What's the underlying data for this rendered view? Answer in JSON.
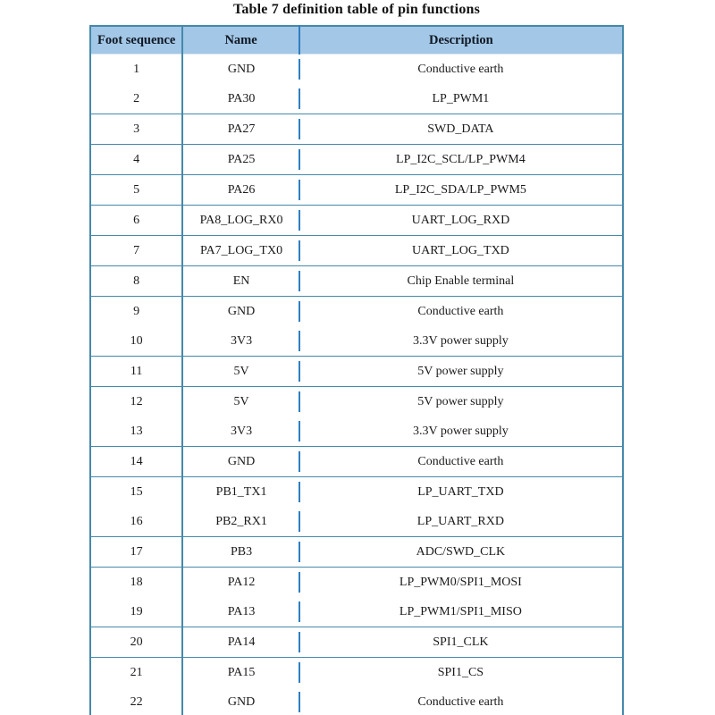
{
  "title": "Table 7 definition table of pin functions",
  "colors": {
    "header_bg": "#a3c7e6",
    "border": "#4589ab",
    "divider": "#2f7fc1",
    "text": "#1a1a1a"
  },
  "table": {
    "columns": [
      "Foot sequence",
      "Name",
      "Description"
    ],
    "rows": [
      {
        "seq": "1",
        "name": "GND",
        "desc": "Conductive earth",
        "merge_below": true
      },
      {
        "seq": "2",
        "name": "PA30",
        "desc": "LP_PWM1",
        "merge_below": false
      },
      {
        "seq": "3",
        "name": "PA27",
        "desc": "SWD_DATA",
        "merge_below": false
      },
      {
        "seq": "4",
        "name": "PA25",
        "desc": "LP_I2C_SCL/LP_PWM4",
        "merge_below": false
      },
      {
        "seq": "5",
        "name": "PA26",
        "desc": "LP_I2C_SDA/LP_PWM5",
        "merge_below": false
      },
      {
        "seq": "6",
        "name": "PA8_LOG_RX0",
        "desc": "UART_LOG_RXD",
        "merge_below": false
      },
      {
        "seq": "7",
        "name": "PA7_LOG_TX0",
        "desc": "UART_LOG_TXD",
        "merge_below": false
      },
      {
        "seq": "8",
        "name": "EN",
        "desc": "Chip Enable terminal",
        "merge_below": false
      },
      {
        "seq": "9",
        "name": "GND",
        "desc": "Conductive earth",
        "merge_below": true
      },
      {
        "seq": "10",
        "name": "3V3",
        "desc": "3.3V power supply",
        "merge_below": false
      },
      {
        "seq": "11",
        "name": "5V",
        "desc": "5V power supply",
        "merge_below": false
      },
      {
        "seq": "12",
        "name": "5V",
        "desc": "5V power supply",
        "merge_below": true
      },
      {
        "seq": "13",
        "name": "3V3",
        "desc": "3.3V power supply",
        "merge_below": false
      },
      {
        "seq": "14",
        "name": "GND",
        "desc": "Conductive earth",
        "merge_below": false
      },
      {
        "seq": "15",
        "name": "PB1_TX1",
        "desc": "LP_UART_TXD",
        "merge_below": true
      },
      {
        "seq": "16",
        "name": "PB2_RX1",
        "desc": "LP_UART_RXD",
        "merge_below": false
      },
      {
        "seq": "17",
        "name": "PB3",
        "desc": "ADC/SWD_CLK",
        "merge_below": false
      },
      {
        "seq": "18",
        "name": "PA12",
        "desc": "LP_PWM0/SPI1_MOSI",
        "merge_below": true
      },
      {
        "seq": "19",
        "name": "PA13",
        "desc": "LP_PWM1/SPI1_MISO",
        "merge_below": false
      },
      {
        "seq": "20",
        "name": "PA14",
        "desc": "SPI1_CLK",
        "merge_below": false
      },
      {
        "seq": "21",
        "name": "PA15",
        "desc": "SPI1_CS",
        "merge_below": true
      },
      {
        "seq": "22",
        "name": "GND",
        "desc": "Conductive earth",
        "merge_below": false
      }
    ]
  }
}
